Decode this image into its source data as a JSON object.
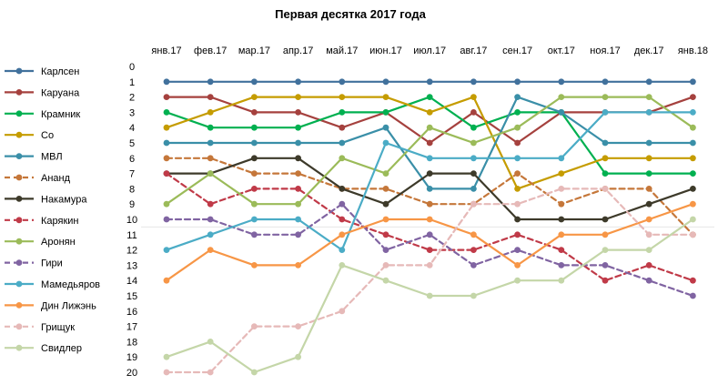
{
  "chart_data": {
    "type": "line",
    "title": "Первая десятка 2017 года",
    "categories": [
      "янв.17",
      "фев.17",
      "мар.17",
      "апр.17",
      "май.17",
      "июн.17",
      "июл.17",
      "авг.17",
      "сен.17",
      "окт.17",
      "ноя.17",
      "дек.17",
      "янв.18"
    ],
    "y_ticks": [
      "0",
      "1",
      "2",
      "3",
      "4",
      "5",
      "6",
      "7",
      "8",
      "9",
      "10",
      "11",
      "12",
      "13",
      "14",
      "15",
      "16",
      "17",
      "18",
      "19",
      "20"
    ],
    "ylim": [
      0,
      20
    ],
    "y_inverted": true,
    "legend_position": "left",
    "series": [
      {
        "name": "Карлсен",
        "color": "#41719c",
        "dash": false,
        "values": [
          1,
          1,
          1,
          1,
          1,
          1,
          1,
          1,
          1,
          1,
          1,
          1,
          1
        ]
      },
      {
        "name": "Каруана",
        "color": "#a5413e",
        "dash": false,
        "values": [
          2,
          2,
          3,
          3,
          4,
          3,
          5,
          3,
          5,
          3,
          3,
          3,
          2
        ]
      },
      {
        "name": "Крамник",
        "color": "#00b050",
        "dash": false,
        "values": [
          3,
          4,
          4,
          4,
          3,
          3,
          2,
          4,
          3,
          3,
          7,
          7,
          7
        ]
      },
      {
        "name": "Со",
        "color": "#c59c00",
        "dash": false,
        "values": [
          4,
          3,
          2,
          2,
          2,
          2,
          3,
          2,
          8,
          7,
          6,
          6,
          6
        ]
      },
      {
        "name": "МВЛ",
        "color": "#3a8fa8",
        "dash": false,
        "values": [
          5,
          5,
          5,
          5,
          5,
          4,
          8,
          8,
          2,
          3,
          5,
          5,
          5
        ]
      },
      {
        "name": "Ананд",
        "color": "#c5773a",
        "dash": true,
        "values": [
          6,
          6,
          7,
          7,
          8,
          8,
          9,
          9,
          7,
          9,
          8,
          8,
          11
        ]
      },
      {
        "name": "Накамура",
        "color": "#3d3a2a",
        "dash": false,
        "values": [
          7,
          7,
          6,
          6,
          8,
          9,
          7,
          7,
          10,
          10,
          10,
          9,
          8
        ]
      },
      {
        "name": "Карякин",
        "color": "#c03a48",
        "dash": true,
        "values": [
          7,
          9,
          8,
          8,
          10,
          11,
          12,
          12,
          11,
          12,
          14,
          13,
          14
        ]
      },
      {
        "name": "Аронян",
        "color": "#9bbb59",
        "dash": false,
        "values": [
          9,
          7,
          9,
          9,
          6,
          7,
          4,
          5,
          4,
          2,
          2,
          2,
          4
        ]
      },
      {
        "name": "Гири",
        "color": "#8064a2",
        "dash": true,
        "values": [
          10,
          10,
          11,
          11,
          9,
          12,
          11,
          13,
          12,
          13,
          13,
          14,
          15
        ]
      },
      {
        "name": "Мамедьяров",
        "color": "#4bacc6",
        "dash": false,
        "values": [
          12,
          11,
          10,
          10,
          12,
          5,
          6,
          6,
          6,
          6,
          3,
          3,
          3
        ]
      },
      {
        "name": "Дин Лижэнь",
        "color": "#f79646",
        "dash": false,
        "values": [
          14,
          12,
          13,
          13,
          11,
          10,
          10,
          11,
          13,
          11,
          11,
          10,
          9
        ]
      },
      {
        "name": "Грищук",
        "color": "#e6b9b8",
        "dash": true,
        "values": [
          20,
          20,
          17,
          17,
          16,
          13,
          13,
          9,
          9,
          8,
          8,
          11,
          11
        ]
      },
      {
        "name": "Свидлер",
        "color": "#c4d6a8",
        "dash": false,
        "values": [
          19,
          18,
          20,
          19,
          13,
          14,
          15,
          15,
          14,
          14,
          12,
          12,
          10
        ]
      }
    ]
  }
}
